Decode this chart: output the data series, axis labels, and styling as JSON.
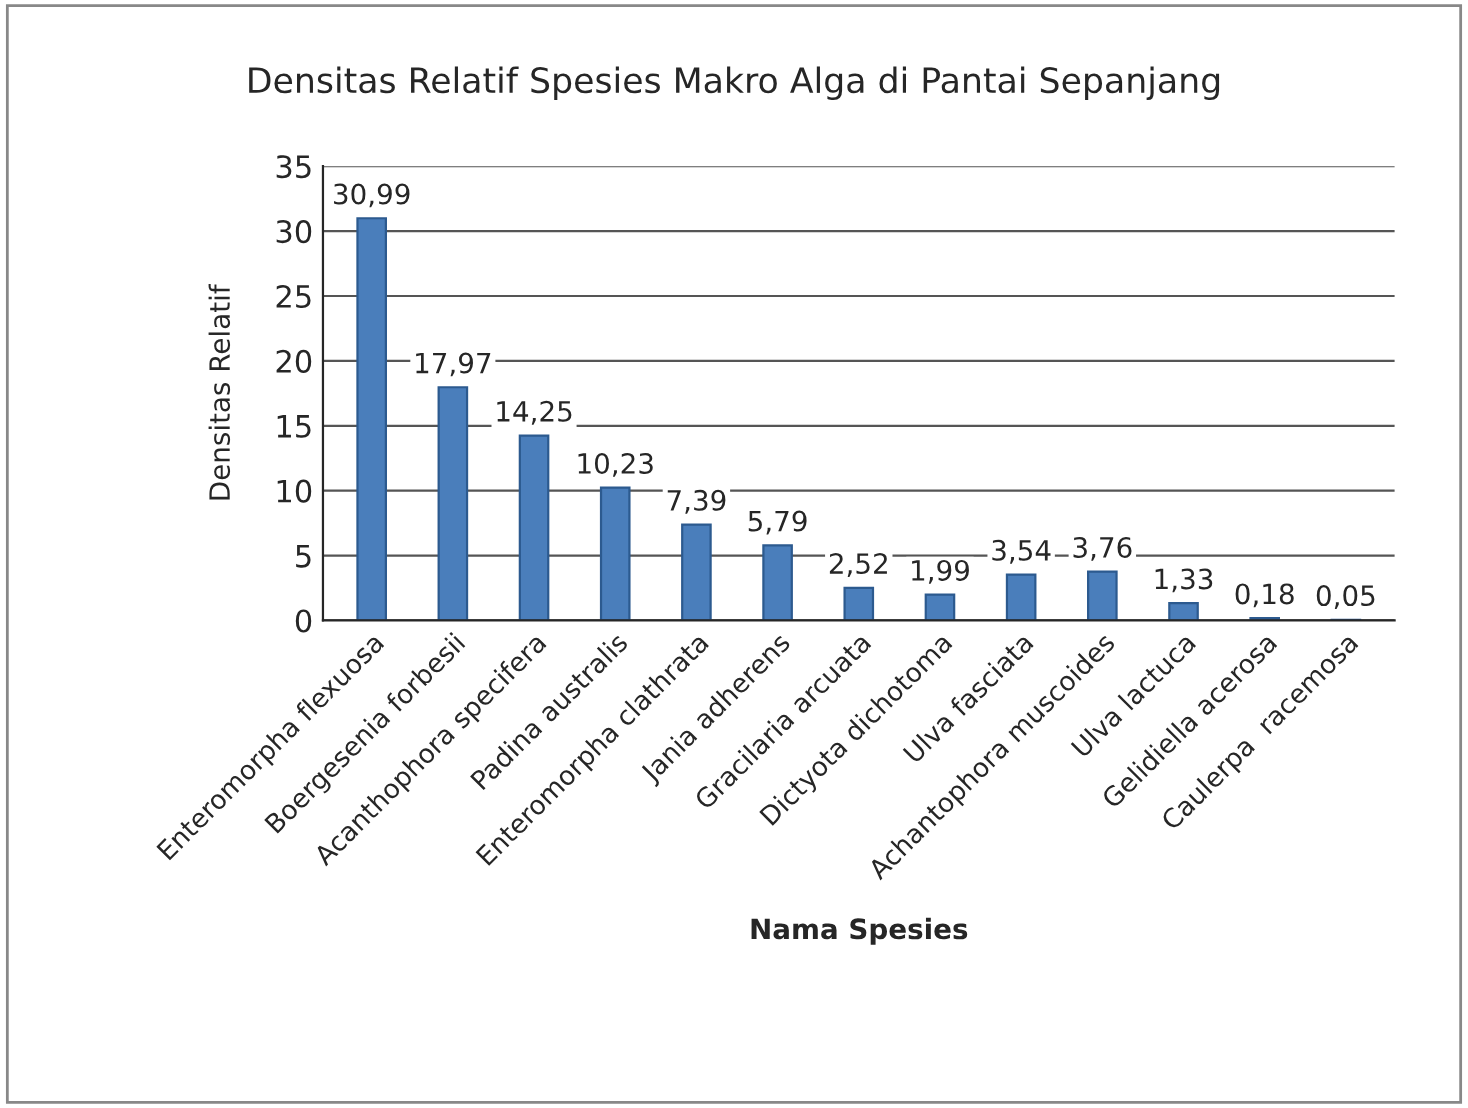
{
  "chart_data": {
    "type": "bar",
    "title": "Densitas Relatif Spesies Makro Alga di Pantai Sepanjang",
    "xlabel": "Nama Spesies",
    "ylabel": "Densitas Relatif",
    "categories": [
      "Enteromorpha flexuosa",
      "Boergesenia forbesii",
      "Acanthophora specifera",
      "Padina australis",
      "Enteromorpha clathrata",
      "Jania adherens",
      "Gracilaria arcuata",
      "Dictyota dichotoma",
      "Ulva fasciata",
      "Achantophora muscoides",
      "Ulva lactuca",
      "Gelidiella acerosa",
      "Caulerpa  racemosa"
    ],
    "values": [
      30.99,
      17.97,
      14.25,
      10.23,
      7.39,
      5.79,
      2.52,
      1.99,
      3.54,
      3.76,
      1.33,
      0.18,
      0.05
    ],
    "value_labels": [
      "30,99",
      "17,97",
      "14,25",
      "10,23",
      "7,39",
      "5,79",
      "2,52",
      "1,99",
      "3,54",
      "3,76",
      "1,33",
      "0,18",
      "0,05"
    ],
    "color": "#4a7ebb",
    "ylim": [
      0,
      35
    ],
    "yticks": [
      0,
      5,
      10,
      15,
      20,
      25,
      30,
      35
    ],
    "grid": "y",
    "legend": false
  }
}
